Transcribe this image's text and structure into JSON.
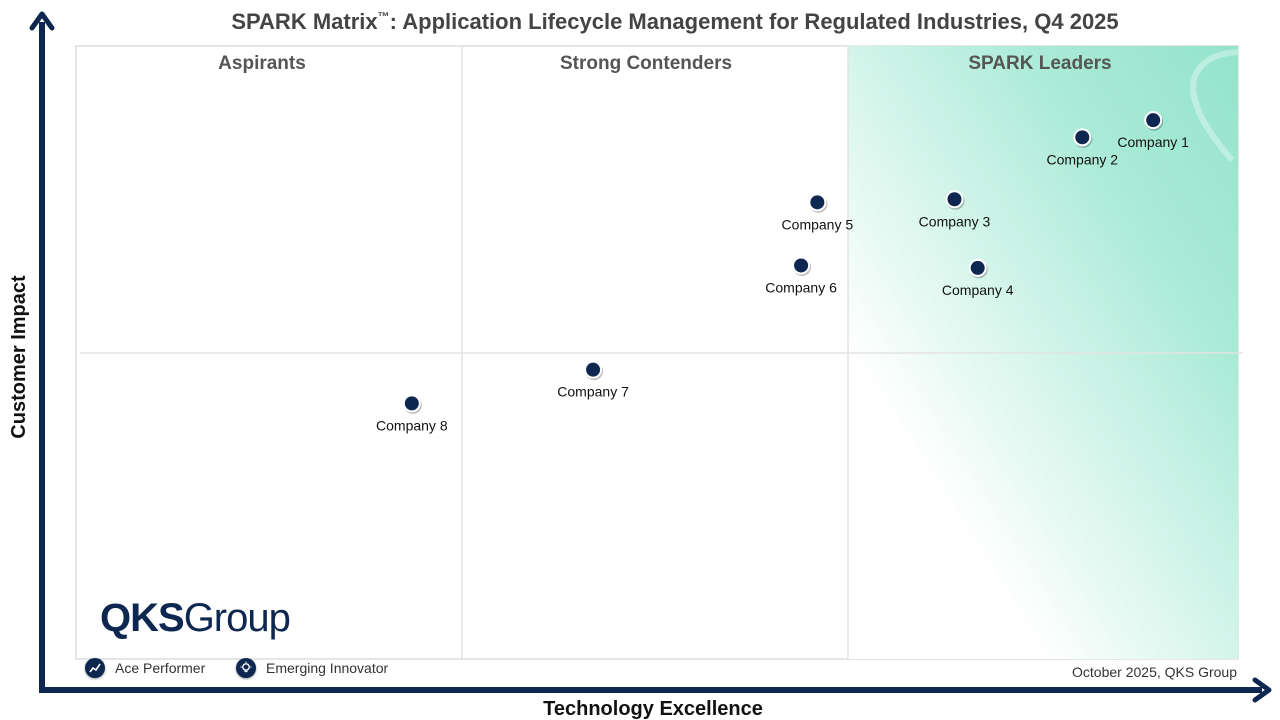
{
  "title": {
    "main": "SPARK Matrix",
    "tm": "™",
    "rest": ": Application Lifecycle Management for Regulated Industries, Q4 2025"
  },
  "chart_data": {
    "type": "scatter",
    "xlabel": "Technology Excellence",
    "ylabel": "Customer Impact",
    "quadrants": [
      "Aspirants",
      "Strong Contenders",
      "SPARK Leaders"
    ],
    "xlim": [
      0,
      100
    ],
    "ylim": [
      0,
      100
    ],
    "points": [
      {
        "label": "Company 1",
        "x": 92.7,
        "y": 87.9
      },
      {
        "label": "Company 2",
        "x": 86.6,
        "y": 85.1
      },
      {
        "label": "Company 3",
        "x": 75.6,
        "y": 75.0
      },
      {
        "label": "Company 4",
        "x": 77.6,
        "y": 63.8
      },
      {
        "label": "Company 5",
        "x": 63.8,
        "y": 74.5
      },
      {
        "label": "Company 6",
        "x": 62.4,
        "y": 64.2
      },
      {
        "label": "Company 7",
        "x": 44.5,
        "y": 47.2
      },
      {
        "label": "Company 8",
        "x": 28.9,
        "y": 41.7
      }
    ],
    "colors": {
      "marker": "#0d2750",
      "axis": "#0d2750",
      "leaders_gradient": "#9ee6cf"
    }
  },
  "logo": {
    "bold": "QKS",
    "light": "Group"
  },
  "legend": {
    "ace_performer": "Ace Performer",
    "emerging_innovator": "Emerging Innovator"
  },
  "footnote": "October 2025, QKS Group"
}
